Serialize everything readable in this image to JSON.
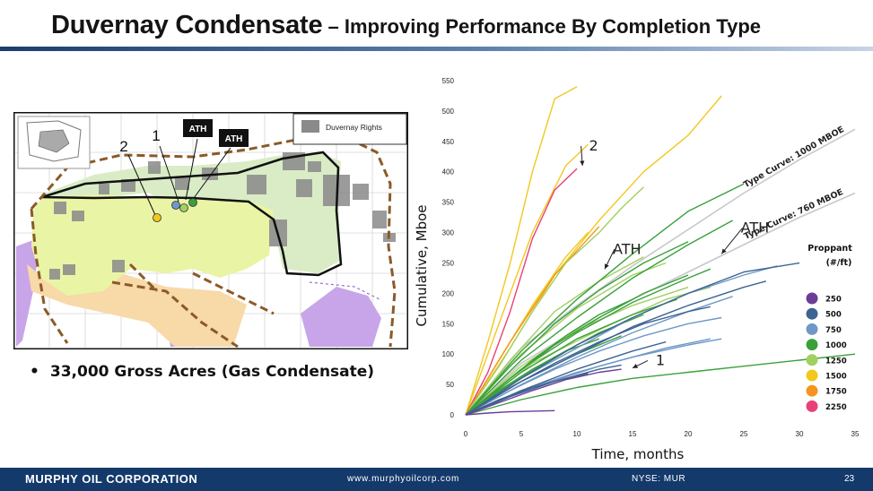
{
  "title": {
    "main": "Duvernay Condensate",
    "dash": " – ",
    "sub": "Improving Performance By Completion Type"
  },
  "map": {
    "legend_label": "Duvernay Rights",
    "labels": {
      "ath_left": "ATH",
      "ath_right": "ATH",
      "well_1": "1",
      "well_2": "2"
    }
  },
  "bullet": {
    "symbol": "•",
    "text": "33,000 Gross Acres (Gas Condensate)"
  },
  "footer": {
    "company": "MURPHY OIL CORPORATION",
    "website": "www.murphyoilcorp.com",
    "ticker": "NYSE: MUR",
    "page": "23"
  },
  "colors": {
    "footer_bg": "#143a6b"
  },
  "chart_data": {
    "type": "line",
    "xlabel": "Time, months",
    "ylabel": "Cumulative, Mboe",
    "xlim": [
      0,
      35
    ],
    "ylim": [
      0,
      550
    ],
    "xticks": [
      0,
      5,
      10,
      15,
      20,
      25,
      30,
      35
    ],
    "yticks": [
      0,
      50,
      100,
      150,
      200,
      250,
      300,
      350,
      400,
      450,
      500,
      550
    ],
    "grid": false,
    "legend": {
      "title": "Proppant (#/ft)",
      "placement": "right",
      "entries": [
        {
          "label": "250",
          "color": "#6b3d99"
        },
        {
          "label": "500",
          "color": "#3d6391"
        },
        {
          "label": "750",
          "color": "#6f98c7"
        },
        {
          "label": "1000",
          "color": "#3aa03a"
        },
        {
          "label": "1250",
          "color": "#a0d060"
        },
        {
          "label": "1500",
          "color": "#f2c81e"
        },
        {
          "label": "1750",
          "color": "#f7931e"
        },
        {
          "label": "2250",
          "color": "#e8417a"
        }
      ]
    },
    "type_curves": [
      {
        "name": "Type Curve: 1000 MBOE",
        "color": "#c8c8c8",
        "points": [
          [
            0,
            0
          ],
          [
            5,
            110
          ],
          [
            10,
            180
          ],
          [
            15,
            245
          ],
          [
            20,
            305
          ],
          [
            25,
            365
          ],
          [
            30,
            420
          ],
          [
            35,
            470
          ]
        ]
      },
      {
        "name": "Type Curve: 760 MBOE",
        "color": "#c8c8c8",
        "points": [
          [
            0,
            0
          ],
          [
            5,
            85
          ],
          [
            10,
            140
          ],
          [
            15,
            190
          ],
          [
            20,
            235
          ],
          [
            25,
            280
          ],
          [
            30,
            325
          ],
          [
            35,
            365
          ]
        ]
      }
    ],
    "series": [
      {
        "color": "#f2c81e",
        "points": [
          [
            0,
            0
          ],
          [
            2,
            120
          ],
          [
            4,
            250
          ],
          [
            6,
            400
          ],
          [
            8,
            520
          ],
          [
            10,
            540
          ]
        ]
      },
      {
        "color": "#f2c81e",
        "points": [
          [
            0,
            0
          ],
          [
            3,
            150
          ],
          [
            6,
            300
          ],
          [
            9,
            410
          ],
          [
            11,
            445
          ]
        ]
      },
      {
        "color": "#f2c81e",
        "points": [
          [
            0,
            0
          ],
          [
            4,
            110
          ],
          [
            8,
            230
          ],
          [
            12,
            320
          ],
          [
            16,
            400
          ],
          [
            20,
            460
          ],
          [
            23,
            525
          ]
        ]
      },
      {
        "color": "#f2c81e",
        "points": [
          [
            0,
            0
          ],
          [
            3,
            90
          ],
          [
            6,
            180
          ],
          [
            9,
            260
          ],
          [
            11,
            300
          ]
        ]
      },
      {
        "color": "#f2c81e",
        "points": [
          [
            0,
            0
          ],
          [
            2,
            60
          ],
          [
            5,
            150
          ],
          [
            8,
            230
          ],
          [
            10,
            270
          ]
        ]
      },
      {
        "color": "#e8417a",
        "points": [
          [
            0,
            0
          ],
          [
            2,
            70
          ],
          [
            4,
            170
          ],
          [
            6,
            290
          ],
          [
            8,
            370
          ],
          [
            10,
            405
          ]
        ]
      },
      {
        "color": "#f7931e",
        "points": [
          [
            0,
            0
          ],
          [
            4,
            120
          ],
          [
            8,
            230
          ],
          [
            12,
            310
          ]
        ]
      },
      {
        "color": "#a0d060",
        "points": [
          [
            0,
            0
          ],
          [
            3,
            80
          ],
          [
            6,
            170
          ],
          [
            9,
            250
          ],
          [
            12,
            300
          ],
          [
            14,
            340
          ],
          [
            16,
            375
          ]
        ]
      },
      {
        "color": "#a0d060",
        "points": [
          [
            0,
            0
          ],
          [
            4,
            90
          ],
          [
            8,
            170
          ],
          [
            12,
            220
          ],
          [
            16,
            260
          ]
        ]
      },
      {
        "color": "#a0d060",
        "points": [
          [
            0,
            0
          ],
          [
            5,
            100
          ],
          [
            10,
            175
          ],
          [
            15,
            230
          ],
          [
            18,
            250
          ]
        ]
      },
      {
        "color": "#a0d060",
        "points": [
          [
            0,
            0
          ],
          [
            5,
            80
          ],
          [
            10,
            140
          ],
          [
            15,
            180
          ],
          [
            20,
            210
          ]
        ]
      },
      {
        "color": "#a0d060",
        "points": [
          [
            0,
            0
          ],
          [
            6,
            85
          ],
          [
            12,
            140
          ],
          [
            18,
            190
          ],
          [
            22,
            210
          ]
        ]
      },
      {
        "color": "#3aa03a",
        "points": [
          [
            0,
            0
          ],
          [
            5,
            105
          ],
          [
            10,
            190
          ],
          [
            15,
            265
          ],
          [
            20,
            335
          ],
          [
            25,
            380
          ]
        ]
      },
      {
        "color": "#3aa03a",
        "points": [
          [
            0,
            0
          ],
          [
            5,
            90
          ],
          [
            10,
            160
          ],
          [
            15,
            225
          ],
          [
            20,
            280
          ],
          [
            24,
            320
          ]
        ]
      },
      {
        "color": "#3aa03a",
        "points": [
          [
            0,
            0
          ],
          [
            4,
            80
          ],
          [
            8,
            150
          ],
          [
            12,
            205
          ],
          [
            16,
            250
          ],
          [
            20,
            285
          ]
        ]
      },
      {
        "color": "#3aa03a",
        "points": [
          [
            0,
            0
          ],
          [
            5,
            75
          ],
          [
            10,
            135
          ],
          [
            15,
            185
          ],
          [
            20,
            225
          ],
          [
            22,
            240
          ]
        ]
      },
      {
        "color": "#3aa03a",
        "points": [
          [
            0,
            0
          ],
          [
            4,
            60
          ],
          [
            8,
            115
          ],
          [
            12,
            160
          ],
          [
            16,
            200
          ],
          [
            20,
            230
          ]
        ]
      },
      {
        "color": "#3aa03a",
        "points": [
          [
            0,
            0
          ],
          [
            5,
            70
          ],
          [
            10,
            125
          ],
          [
            15,
            165
          ],
          [
            19,
            190
          ]
        ]
      },
      {
        "color": "#3aa03a",
        "points": [
          [
            0,
            0
          ],
          [
            3,
            45
          ],
          [
            6,
            90
          ],
          [
            9,
            130
          ],
          [
            12,
            165
          ],
          [
            15,
            190
          ]
        ]
      },
      {
        "color": "#3aa03a",
        "points": [
          [
            0,
            0
          ],
          [
            4,
            50
          ],
          [
            8,
            95
          ],
          [
            12,
            135
          ],
          [
            16,
            165
          ]
        ]
      },
      {
        "color": "#3aa03a",
        "points": [
          [
            0,
            0
          ],
          [
            5,
            55
          ],
          [
            10,
            100
          ],
          [
            14,
            130
          ]
        ]
      },
      {
        "color": "#3aa03a",
        "points": [
          [
            0,
            0
          ],
          [
            3,
            40
          ],
          [
            6,
            75
          ],
          [
            9,
            105
          ],
          [
            12,
            125
          ]
        ]
      },
      {
        "color": "#3aa03a",
        "points": [
          [
            0,
            0
          ],
          [
            5,
            25
          ],
          [
            10,
            45
          ],
          [
            15,
            60
          ],
          [
            20,
            70
          ],
          [
            25,
            80
          ],
          [
            30,
            90
          ],
          [
            35,
            100
          ]
        ]
      },
      {
        "color": "#6f98c7",
        "points": [
          [
            0,
            0
          ],
          [
            5,
            60
          ],
          [
            10,
            110
          ],
          [
            15,
            160
          ],
          [
            20,
            200
          ],
          [
            25,
            230
          ],
          [
            28,
            245
          ]
        ]
      },
      {
        "color": "#6f98c7",
        "points": [
          [
            0,
            0
          ],
          [
            5,
            50
          ],
          [
            10,
            95
          ],
          [
            15,
            135
          ],
          [
            20,
            170
          ],
          [
            24,
            195
          ]
        ]
      },
      {
        "color": "#6f98c7",
        "points": [
          [
            0,
            0
          ],
          [
            4,
            40
          ],
          [
            8,
            75
          ],
          [
            12,
            105
          ],
          [
            16,
            130
          ],
          [
            20,
            150
          ],
          [
            23,
            160
          ]
        ]
      },
      {
        "color": "#6f98c7",
        "points": [
          [
            0,
            0
          ],
          [
            5,
            40
          ],
          [
            10,
            70
          ],
          [
            15,
            95
          ],
          [
            20,
            115
          ],
          [
            23,
            125
          ]
        ]
      },
      {
        "color": "#6f98c7",
        "points": [
          [
            0,
            0
          ],
          [
            6,
            45
          ],
          [
            12,
            80
          ],
          [
            18,
            110
          ],
          [
            22,
            125
          ]
        ]
      },
      {
        "color": "#3d6391",
        "points": [
          [
            0,
            0
          ],
          [
            5,
            60
          ],
          [
            10,
            115
          ],
          [
            15,
            160
          ],
          [
            20,
            200
          ],
          [
            25,
            235
          ],
          [
            30,
            250
          ]
        ]
      },
      {
        "color": "#3d6391",
        "points": [
          [
            0,
            0
          ],
          [
            5,
            55
          ],
          [
            10,
            100
          ],
          [
            15,
            145
          ],
          [
            20,
            180
          ],
          [
            25,
            210
          ],
          [
            27,
            220
          ]
        ]
      },
      {
        "color": "#3d6391",
        "points": [
          [
            0,
            0
          ],
          [
            4,
            45
          ],
          [
            8,
            85
          ],
          [
            12,
            120
          ],
          [
            16,
            150
          ],
          [
            20,
            170
          ],
          [
            22,
            178
          ]
        ]
      },
      {
        "color": "#3d6391",
        "points": [
          [
            0,
            0
          ],
          [
            5,
            40
          ],
          [
            10,
            75
          ],
          [
            15,
            105
          ],
          [
            18,
            120
          ]
        ]
      },
      {
        "color": "#3d6391",
        "points": [
          [
            0,
            0
          ],
          [
            4,
            30
          ],
          [
            8,
            55
          ],
          [
            12,
            75
          ],
          [
            14,
            82
          ]
        ]
      },
      {
        "color": "#3d6391",
        "points": [
          [
            0,
            0
          ],
          [
            3,
            25
          ],
          [
            6,
            45
          ],
          [
            9,
            60
          ],
          [
            11,
            68
          ]
        ]
      },
      {
        "color": "#6b3d99",
        "points": [
          [
            0,
            0
          ],
          [
            3,
            20
          ],
          [
            6,
            40
          ],
          [
            9,
            58
          ],
          [
            12,
            70
          ],
          [
            14,
            75
          ]
        ]
      },
      {
        "color": "#6b3d99",
        "points": [
          [
            0,
            0
          ],
          [
            2,
            3
          ],
          [
            4,
            5
          ],
          [
            6,
            6
          ],
          [
            8,
            7
          ]
        ]
      }
    ],
    "annotations": [
      {
        "text": "2",
        "at": [
          11.5,
          435
        ]
      },
      {
        "text": "ATH",
        "at": [
          14.5,
          265
        ]
      },
      {
        "text": "ATH",
        "at": [
          26,
          300
        ]
      },
      {
        "text": "1",
        "at": [
          17.5,
          82
        ]
      }
    ]
  }
}
